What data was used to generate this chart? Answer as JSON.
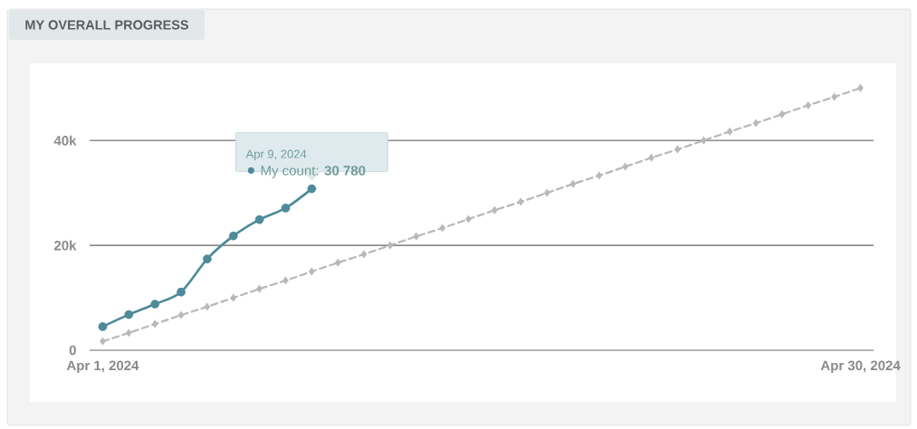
{
  "chart_data": {
    "type": "line",
    "title": "MY OVERALL PROGRESS",
    "x": [
      "2024-04-01",
      "2024-04-02",
      "2024-04-03",
      "2024-04-04",
      "2024-04-05",
      "2024-04-06",
      "2024-04-07",
      "2024-04-08",
      "2024-04-09",
      "2024-04-10",
      "2024-04-11",
      "2024-04-12",
      "2024-04-13",
      "2024-04-14",
      "2024-04-15",
      "2024-04-16",
      "2024-04-17",
      "2024-04-18",
      "2024-04-19",
      "2024-04-20",
      "2024-04-21",
      "2024-04-22",
      "2024-04-23",
      "2024-04-24",
      "2024-04-25",
      "2024-04-26",
      "2024-04-27",
      "2024-04-28",
      "2024-04-29",
      "2024-04-30"
    ],
    "series": [
      {
        "name": "My count:",
        "color": "#4e8a99",
        "marker": "circle",
        "line_style": "solid",
        "x": [
          "2024-04-01",
          "2024-04-02",
          "2024-04-03",
          "2024-04-04",
          "2024-04-05",
          "2024-04-06",
          "2024-04-07",
          "2024-04-08",
          "2024-04-09"
        ],
        "values": [
          4500,
          6800,
          8800,
          11100,
          17400,
          21800,
          24900,
          27100,
          30780
        ],
        "value_labels": [
          null,
          null,
          null,
          null,
          null,
          null,
          null,
          null,
          "30 780"
        ]
      },
      {
        "color": "#b8b8b8",
        "marker": "diamond",
        "line_style": "dashed",
        "values": [
          1700,
          3300,
          5000,
          6700,
          8300,
          10000,
          11700,
          13300,
          15000,
          16700,
          18300,
          20000,
          21700,
          23300,
          25000,
          26700,
          28300,
          30000,
          31700,
          33300,
          35000,
          36700,
          38300,
          40000,
          41700,
          43300,
          45000,
          46700,
          48300,
          50000
        ]
      }
    ],
    "xlim": [
      "2024-03-31T12:00",
      "2024-04-30T12:00"
    ],
    "xticks": [
      {
        "value": "2024-04-01",
        "label": "Apr 1, 2024"
      },
      {
        "value": "2024-04-30",
        "label": "Apr 30, 2024"
      }
    ],
    "ylim": [
      0,
      54700
    ],
    "yticks": [
      0,
      {
        "value": 20000,
        "label": "20k"
      },
      {
        "value": 40000,
        "label": "40k"
      }
    ],
    "grid": "y",
    "annotations": [
      {
        "text": "Apr 9, 2024",
        "x": "2024-04-09",
        "y": 30780
      }
    ]
  }
}
